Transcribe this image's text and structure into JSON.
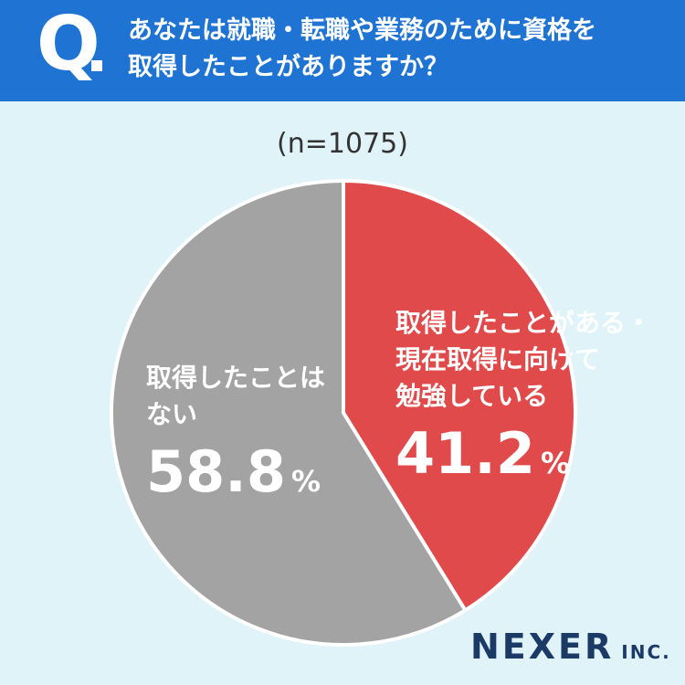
{
  "header": {
    "q_mark": "Q",
    "question_line1": "あなたは就職・転職や業務のために資格を",
    "question_line2": "取得したことがありますか？"
  },
  "sample_size": "(n=1075)",
  "chart_data": {
    "type": "pie",
    "slices": [
      {
        "label": "取得したことがある・現在取得に向けて勉強している",
        "value": 41.2,
        "color": "#e04a4a"
      },
      {
        "label": "取得したことはない",
        "value": 58.8,
        "color": "#a3a3a3"
      }
    ]
  },
  "labels": {
    "yes_line1": "取得したことがある・",
    "yes_line2": "現在取得に向けて",
    "yes_line3": "勉強している",
    "yes_pct": "41.2",
    "no_line1": "取得したことは",
    "no_line2": "ない",
    "no_pct": "58.8",
    "pct_sign": "%"
  },
  "logo": {
    "name": "NEXER",
    "suffix": "INC."
  }
}
